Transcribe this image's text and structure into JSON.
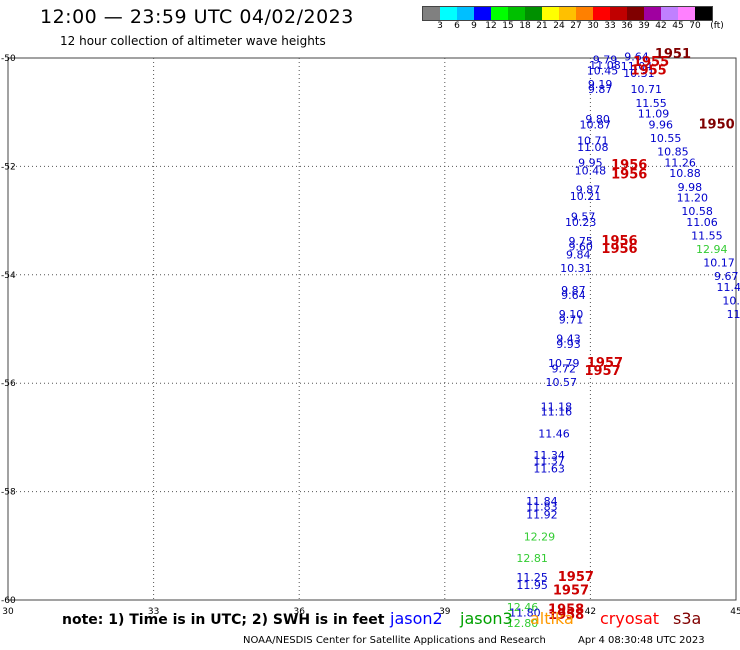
{
  "title": "12:00 — 23:59 UTC 04/02/2023",
  "subtitle": "12 hour collection of altimeter wave heights",
  "color_scale": {
    "unit_label": "(ft)",
    "colors": [
      "#808080",
      "#00ffff",
      "#00bfff",
      "#0000ff",
      "#00ff00",
      "#00c000",
      "#009000",
      "#ffff00",
      "#ffc000",
      "#ff8000",
      "#ff0000",
      "#c00000",
      "#800000",
      "#a000a0",
      "#c080ff",
      "#ff80ff",
      "#000000"
    ],
    "labels": [
      "3",
      "6",
      "9",
      "12",
      "15",
      "18",
      "21",
      "24",
      "27",
      "30",
      "33",
      "36",
      "39",
      "42",
      "45",
      "70"
    ]
  },
  "axes": {
    "lon_labels": [
      "30",
      "33",
      "36",
      "39",
      "42",
      "45"
    ],
    "lat_labels": [
      "-50",
      "-52",
      "-54",
      "-56",
      "-58",
      "-60"
    ]
  },
  "track_values": [
    {
      "v": "9.79",
      "lon": 42.3,
      "lat": -50.1,
      "c": "#0000cc"
    },
    {
      "v": "11.08",
      "lon": 42.3,
      "lat": -50.2,
      "c": "#0000cc"
    },
    {
      "v": "10.45",
      "lon": 42.25,
      "lat": -50.3,
      "c": "#0000cc"
    },
    {
      "v": "9.19",
      "lon": 42.2,
      "lat": -50.55,
      "c": "#0000cc"
    },
    {
      "v": "9.87",
      "lon": 42.2,
      "lat": -50.65,
      "c": "#0000cc"
    },
    {
      "v": "9.80",
      "lon": 42.15,
      "lat": -51.2,
      "c": "#0000cc"
    },
    {
      "v": "10.87",
      "lon": 42.1,
      "lat": -51.3,
      "c": "#0000cc"
    },
    {
      "v": "10.71",
      "lon": 42.05,
      "lat": -51.6,
      "c": "#0000cc"
    },
    {
      "v": "11.08",
      "lon": 42.05,
      "lat": -51.72,
      "c": "#0000cc"
    },
    {
      "v": "9.95",
      "lon": 42.0,
      "lat": -52.0,
      "c": "#0000cc"
    },
    {
      "v": "10.48",
      "lon": 42.0,
      "lat": -52.15,
      "c": "#0000cc"
    },
    {
      "v": "9.87",
      "lon": 41.95,
      "lat": -52.5,
      "c": "#0000cc"
    },
    {
      "v": "10.21",
      "lon": 41.9,
      "lat": -52.62,
      "c": "#0000cc"
    },
    {
      "v": "9.57",
      "lon": 41.85,
      "lat": -53.0,
      "c": "#0000cc"
    },
    {
      "v": "10.23",
      "lon": 41.8,
      "lat": -53.1,
      "c": "#0000cc"
    },
    {
      "v": "9.75",
      "lon": 41.8,
      "lat": -53.45,
      "c": "#0000cc"
    },
    {
      "v": "9.60",
      "lon": 41.8,
      "lat": -53.55,
      "c": "#0000cc"
    },
    {
      "v": "9.84",
      "lon": 41.75,
      "lat": -53.7,
      "c": "#0000cc"
    },
    {
      "v": "10.31",
      "lon": 41.7,
      "lat": -53.95,
      "c": "#0000cc"
    },
    {
      "v": "9.87",
      "lon": 41.65,
      "lat": -54.35,
      "c": "#0000cc"
    },
    {
      "v": "9.64",
      "lon": 41.65,
      "lat": -54.45,
      "c": "#0000cc"
    },
    {
      "v": "9.10",
      "lon": 41.6,
      "lat": -54.8,
      "c": "#0000cc"
    },
    {
      "v": "9.71",
      "lon": 41.6,
      "lat": -54.9,
      "c": "#0000cc"
    },
    {
      "v": "9.43",
      "lon": 41.55,
      "lat": -55.25,
      "c": "#0000cc"
    },
    {
      "v": "9.93",
      "lon": 41.55,
      "lat": -55.35,
      "c": "#0000cc"
    },
    {
      "v": "10.79",
      "lon": 41.45,
      "lat": -55.7,
      "c": "#0000cc"
    },
    {
      "v": "9.72",
      "lon": 41.45,
      "lat": -55.8,
      "c": "#0000cc"
    },
    {
      "v": "10.57",
      "lon": 41.4,
      "lat": -56.05,
      "c": "#0000cc"
    },
    {
      "v": "11.18",
      "lon": 41.3,
      "lat": -56.5,
      "c": "#0000cc"
    },
    {
      "v": "11.16",
      "lon": 41.3,
      "lat": -56.6,
      "c": "#0000cc"
    },
    {
      "v": "11.46",
      "lon": 41.25,
      "lat": -57.0,
      "c": "#0000cc"
    },
    {
      "v": "11.34",
      "lon": 41.15,
      "lat": -57.4,
      "c": "#0000cc"
    },
    {
      "v": "11.37",
      "lon": 41.15,
      "lat": -57.5,
      "c": "#0000cc"
    },
    {
      "v": "11.63",
      "lon": 41.15,
      "lat": -57.65,
      "c": "#0000cc"
    },
    {
      "v": "11.84",
      "lon": 41.0,
      "lat": -58.25,
      "c": "#0000cc"
    },
    {
      "v": "11.83",
      "lon": 41.0,
      "lat": -58.35,
      "c": "#0000cc"
    },
    {
      "v": "11.92",
      "lon": 41.0,
      "lat": -58.5,
      "c": "#0000cc"
    },
    {
      "v": "12.29",
      "lon": 40.95,
      "lat": -58.9,
      "c": "#33cc33"
    },
    {
      "v": "12.81",
      "lon": 40.8,
      "lat": -59.3,
      "c": "#33cc33"
    },
    {
      "v": "11.25",
      "lon": 40.8,
      "lat": -59.65,
      "c": "#0000cc"
    },
    {
      "v": "11.95",
      "lon": 40.8,
      "lat": -59.8,
      "c": "#0000cc"
    },
    {
      "v": "12.46",
      "lon": 40.6,
      "lat": -60.2,
      "c": "#33cc33"
    },
    {
      "v": "11.80",
      "lon": 40.65,
      "lat": -60.3,
      "c": "#0000cc"
    },
    {
      "v": "12.80",
      "lon": 40.6,
      "lat": -60.5,
      "c": "#33cc33"
    },
    {
      "v": "9.64",
      "lon": 42.95,
      "lat": -50.05,
      "c": "#0000cc"
    },
    {
      "v": "11.04",
      "lon": 42.95,
      "lat": -50.22,
      "c": "#0000cc"
    },
    {
      "v": "10.31",
      "lon": 43.0,
      "lat": -50.35,
      "c": "#0000cc"
    },
    {
      "v": "10.71",
      "lon": 43.15,
      "lat": -50.65,
      "c": "#0000cc"
    },
    {
      "v": "11.55",
      "lon": 43.25,
      "lat": -50.9,
      "c": "#0000cc"
    },
    {
      "v": "11.09",
      "lon": 43.3,
      "lat": -51.1,
      "c": "#0000cc"
    },
    {
      "v": "9.96",
      "lon": 43.45,
      "lat": -51.3,
      "c": "#0000cc"
    },
    {
      "v": "10.55",
      "lon": 43.55,
      "lat": -51.55,
      "c": "#0000cc"
    },
    {
      "v": "10.85",
      "lon": 43.7,
      "lat": -51.8,
      "c": "#0000cc"
    },
    {
      "v": "11.26",
      "lon": 43.85,
      "lat": -52.0,
      "c": "#0000cc"
    },
    {
      "v": "10.88",
      "lon": 43.95,
      "lat": -52.2,
      "c": "#0000cc"
    },
    {
      "v": "9.98",
      "lon": 44.05,
      "lat": -52.45,
      "c": "#0000cc"
    },
    {
      "v": "11.20",
      "lon": 44.1,
      "lat": -52.65,
      "c": "#0000cc"
    },
    {
      "v": "10.58",
      "lon": 44.2,
      "lat": -52.9,
      "c": "#0000cc"
    },
    {
      "v": "11.06",
      "lon": 44.3,
      "lat": -53.1,
      "c": "#0000cc"
    },
    {
      "v": "11.55",
      "lon": 44.4,
      "lat": -53.35,
      "c": "#0000cc"
    },
    {
      "v": "12.94",
      "lon": 44.5,
      "lat": -53.6,
      "c": "#33cc33"
    },
    {
      "v": "10.17",
      "lon": 44.65,
      "lat": -53.85,
      "c": "#0000cc"
    },
    {
      "v": "9.67",
      "lon": 44.8,
      "lat": -54.1,
      "c": "#0000cc"
    },
    {
      "v": "11.4",
      "lon": 44.85,
      "lat": -54.3,
      "c": "#0000cc"
    },
    {
      "v": "10.",
      "lon": 44.9,
      "lat": -54.55,
      "c": "#0000cc"
    },
    {
      "v": "11",
      "lon": 44.95,
      "lat": -54.8,
      "c": "#0000cc"
    }
  ],
  "time_tags": [
    {
      "t": "1951",
      "lon": 43.7,
      "lat": -50.0,
      "c": "#800000"
    },
    {
      "t": "1955",
      "lon": 43.25,
      "lat": -50.15,
      "c": "#cc0000"
    },
    {
      "t": "1955",
      "lon": 43.2,
      "lat": -50.3,
      "c": "#cc0000"
    },
    {
      "t": "1950",
      "lon": 44.6,
      "lat": -51.3,
      "c": "#800000"
    },
    {
      "t": "1956",
      "lon": 42.8,
      "lat": -52.05,
      "c": "#cc0000"
    },
    {
      "t": "1956",
      "lon": 42.8,
      "lat": -52.22,
      "c": "#cc0000"
    },
    {
      "t": "1956",
      "lon": 42.6,
      "lat": -53.45,
      "c": "#cc0000"
    },
    {
      "t": "1956",
      "lon": 42.6,
      "lat": -53.6,
      "c": "#cc0000"
    },
    {
      "t": "1957",
      "lon": 42.3,
      "lat": -55.7,
      "c": "#cc0000"
    },
    {
      "t": "1957",
      "lon": 42.25,
      "lat": -55.85,
      "c": "#cc0000"
    },
    {
      "t": "1957",
      "lon": 41.7,
      "lat": -59.65,
      "c": "#cc0000"
    },
    {
      "t": "1957",
      "lon": 41.6,
      "lat": -59.9,
      "c": "#cc0000"
    },
    {
      "t": "1958",
      "lon": 41.5,
      "lat": -60.25,
      "c": "#cc0000"
    },
    {
      "t": "1958",
      "lon": 41.5,
      "lat": -60.35,
      "c": "#cc0000"
    }
  ],
  "note": "note: 1) Time is in UTC; 2) SWH is in feet",
  "legend": [
    {
      "name": "jason2",
      "color": "#0000ff"
    },
    {
      "name": "jason3",
      "color": "#00a000"
    },
    {
      "name": "altika",
      "color": "#ff9900"
    },
    {
      "name": "cryosat",
      "color": "#ff0000"
    },
    {
      "name": "s3a",
      "color": "#800000"
    }
  ],
  "footer": "NOAA/NESDIS Center for Satellite Applications and Research",
  "footer_time": "Apr  4 08:30:48 UTC 2023"
}
